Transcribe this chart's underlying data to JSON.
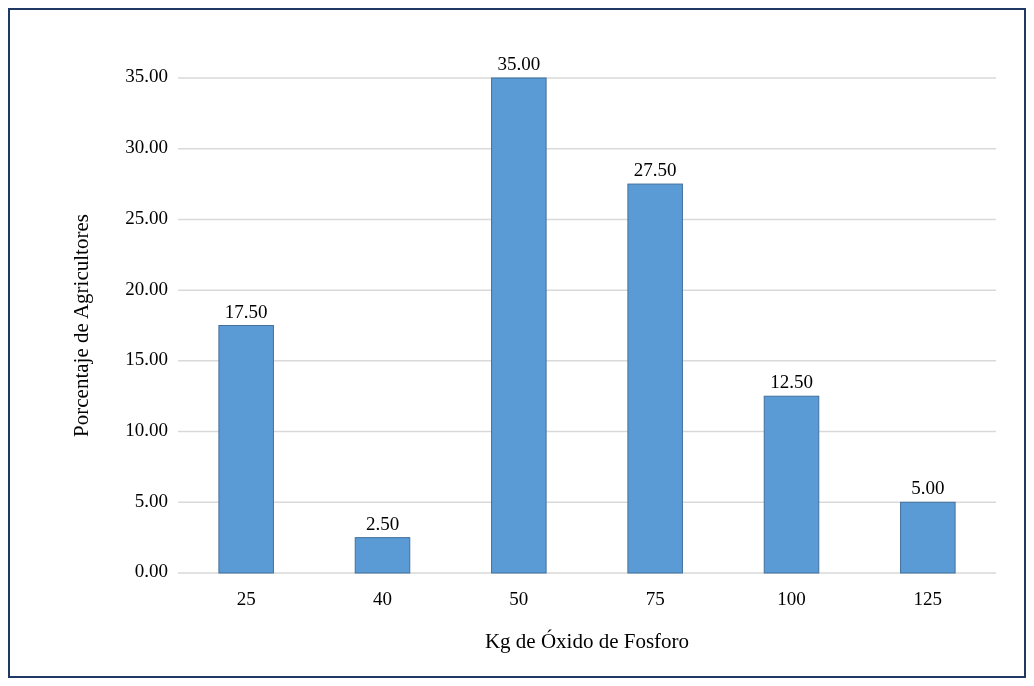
{
  "chart_data": {
    "type": "bar",
    "xlabel": "Kg de Óxido de Fosforo",
    "ylabel": "Porcentaje de Agricultores",
    "categories": [
      "25",
      "40",
      "50",
      "75",
      "100",
      "125"
    ],
    "values": [
      17.5,
      2.5,
      35,
      27.5,
      12.5,
      5
    ],
    "value_labels": [
      "17.50",
      "2.50",
      "35.00",
      "27.50",
      "12.50",
      "5.00"
    ],
    "color": "#5b9bd5",
    "ylim": [
      0,
      35
    ],
    "yticks": [
      {
        "value": 0,
        "label": "0.00"
      },
      {
        "value": 5,
        "label": "5.00"
      },
      {
        "value": 10,
        "label": "10.00"
      },
      {
        "value": 15,
        "label": "15.00"
      },
      {
        "value": 20,
        "label": "20.00"
      },
      {
        "value": 25,
        "label": "25.00"
      },
      {
        "value": 30,
        "label": "30.00"
      },
      {
        "value": 35,
        "label": "35.00"
      }
    ],
    "grid": "y"
  }
}
